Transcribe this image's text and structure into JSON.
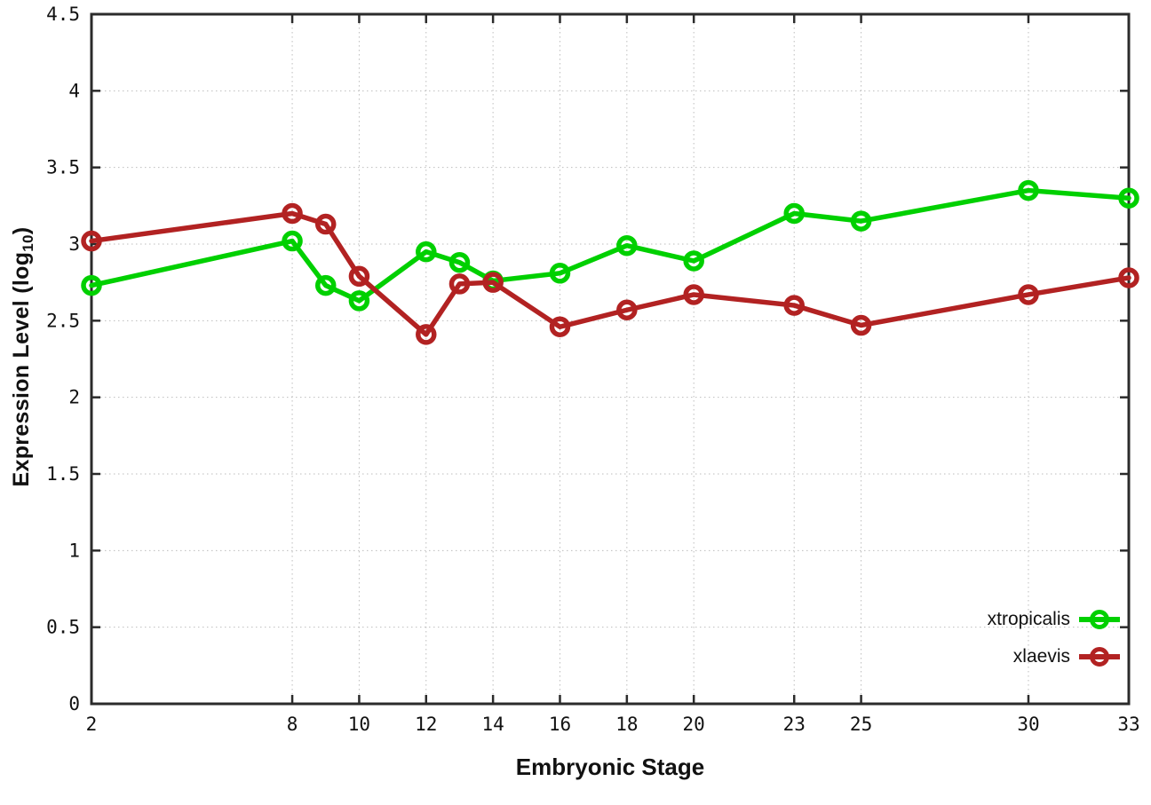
{
  "chart_data": {
    "type": "line",
    "title": "",
    "xlabel": "Embryonic Stage",
    "ylabel": "Expression Level (log10)",
    "ylabel_prefix": "Expression Level (log",
    "ylabel_sub": "10",
    "ylabel_suffix": ")",
    "xlim": [
      2,
      33
    ],
    "ylim": [
      0,
      4.5
    ],
    "ytick_step": 0.5,
    "xticks": [
      2,
      8,
      10,
      12,
      14,
      16,
      18,
      20,
      23,
      25,
      30,
      33
    ],
    "grid": true,
    "legend_position": "bottom-right",
    "x": [
      2,
      8,
      9,
      10,
      12,
      13,
      14,
      16,
      18,
      20,
      23,
      25,
      30,
      33
    ],
    "series": [
      {
        "name": "xtropicalis",
        "color": "#00d000",
        "marker": "open-circle",
        "values": [
          2.73,
          3.02,
          2.73,
          2.63,
          2.95,
          2.88,
          2.76,
          2.81,
          2.99,
          2.89,
          3.2,
          3.15,
          3.35,
          3.3
        ]
      },
      {
        "name": "xlaevis",
        "color": "#b22222",
        "marker": "open-circle",
        "values": [
          3.02,
          3.2,
          3.13,
          2.79,
          2.41,
          2.74,
          2.75,
          2.46,
          2.57,
          2.67,
          2.6,
          2.47,
          2.67,
          2.78
        ]
      }
    ],
    "colors": {
      "axis": "#2b2b2b",
      "grid": "#bdbdbd",
      "background": "#ffffff",
      "text": "#111111"
    }
  }
}
